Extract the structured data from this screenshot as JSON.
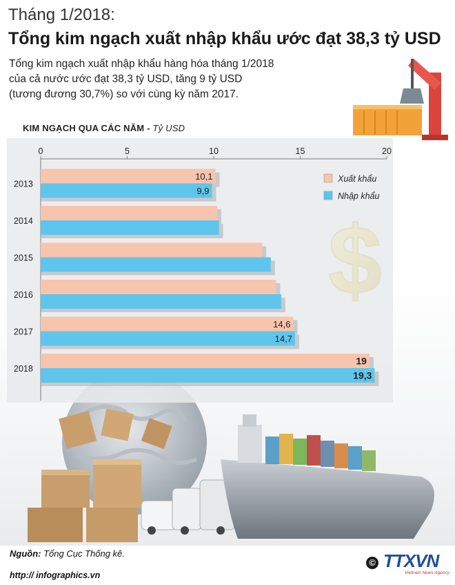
{
  "header": {
    "date": "Tháng 1/2018:",
    "title": "Tổng kim ngạch xuất nhập khẩu ước đạt 38,3 tỷ USD"
  },
  "summary": {
    "lines": [
      "Tổng kim ngạch xuất nhập khẩu hàng hóa tháng 1/2018",
      "của cả nước ước đạt 38,3 tỷ USD, tăng 9 tỷ USD",
      "(tương đương 30,7%) so với cùng kỳ năm 2017."
    ]
  },
  "chart_data": {
    "type": "bar",
    "orientation": "horizontal",
    "title": "KIM NGẠCH QUA CÁC NĂM",
    "unit": "Tỷ USD",
    "categories": [
      "2013",
      "2014",
      "2015",
      "2016",
      "2017",
      "2018"
    ],
    "series": [
      {
        "name": "Xuất khẩu",
        "values": [
          10.1,
          10.2,
          12.8,
          13.6,
          14.6,
          19
        ],
        "labels": [
          "10,1",
          "",
          "",
          "",
          "14,6",
          "19"
        ],
        "color": "#f7c4ad"
      },
      {
        "name": "Nhập khẩu",
        "values": [
          9.9,
          10.3,
          13.3,
          13.9,
          14.7,
          19.3
        ],
        "labels": [
          "9,9",
          "",
          "",
          "",
          "14,7",
          "19,3"
        ],
        "color": "#5fc5ec"
      }
    ],
    "xlim": [
      0,
      20
    ],
    "ticks": [
      "0",
      "5",
      "10",
      "15",
      "20"
    ],
    "tick_values": [
      0,
      5,
      10,
      15,
      20
    ],
    "legend_position": "top-right",
    "grid": false
  },
  "footer": {
    "source_label": "Nguồn:",
    "source": "Tổng Cục Thống kê.",
    "url": "http:// infographics.vn",
    "copyright": "©",
    "logo": "TTXVN",
    "logo_subtitle": "Vietnam News Agency"
  }
}
